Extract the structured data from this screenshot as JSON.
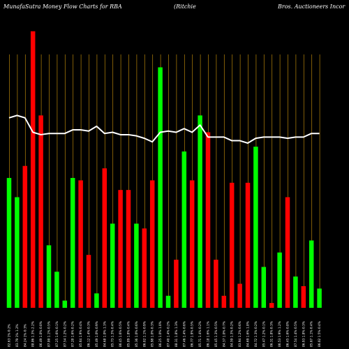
{
  "chart_data": {
    "type": "bar",
    "title_left": "MunafaSutra  Money Flow  Charts for RBA",
    "title_mid": "(Ritchie",
    "title_right": "Bros. Auctioneers Incor",
    "colors": {
      "background": "#000000",
      "up": "#00ff00",
      "down": "#ff0000",
      "line": "#ffffff",
      "grid": "#b8860b"
    },
    "grid": true,
    "categories": [
      "82.63 1% 0.2%",
      "83.79 1% 1.2%",
      "84.24 1% 0.3%",
      "88.86 1.3% 2.2%",
      "86.49 1.0% 0.0%",
      "87.00 1.1% 0.5%",
      "87.25 1.6% 0.1%",
      "87.54 1.2% 0.2%",
      "87.28 1.6% 0.2%",
      "85.64 1.9% 0.4%",
      "86.12 1.4% 0.3%",
      "85.49 1.0% 0.9%",
      "84.68 1.0% 1.3%",
      "85.73 1.3% 0.4%",
      "86.45 1.6% 0.5%",
      "85.89 1.8% 0.4%",
      "85.36 1.0% 0.6%",
      "86.02 1.1% 0.9%",
      "85.98 1.0% 0.3%",
      "86.25 1.0% 1.0%",
      "87.40 1.4% 0.2%",
      "88.31 1.8% 1.3%",
      "87.46 1.4% 0.6%",
      "86.77 1.9% 0.5%",
      "85.71 1.4% 0.2%",
      "86.18 1.6% 1.1%",
      "85.45 1.3% 0.5%",
      "84.37 1.0% 0.7%",
      "84.59 1.3% 0.2%",
      "83.94 1.2% 0.6%",
      "84.69 1.6% 1.8%",
      "84.72 1.3% 0.2%",
      "85.47 1.2% 0.1%",
      "86.31 1.8% 0.3%",
      "86.53 1.9% 1.2%",
      "86.45 1.6% 0.8%",
      "87.54 1.4% 0.5%",
      "86.93 1.8% 0.3%",
      "85.67 1.1% 0.4%",
      "86.02 1.5% 0.4%"
    ],
    "series": [
      {
        "values": [
          54,
          46,
          59,
          115,
          80,
          26,
          15,
          3,
          54,
          53,
          22,
          6,
          58,
          35,
          49,
          49,
          35,
          33,
          53,
          100,
          5,
          20,
          65,
          53,
          80,
          73,
          20,
          5,
          52,
          10,
          52,
          67,
          17,
          2,
          23,
          46,
          13,
          9,
          28,
          8
        ],
        "colors": [
          "up",
          "up",
          "down",
          "down",
          "down",
          "up",
          "up",
          "up",
          "up",
          "down",
          "down",
          "up",
          "down",
          "up",
          "down",
          "down",
          "up",
          "down",
          "down",
          "up",
          "up",
          "down",
          "up",
          "down",
          "up",
          "down",
          "down",
          "down",
          "down",
          "down",
          "down",
          "up",
          "up",
          "down",
          "up",
          "down",
          "up",
          "down",
          "up",
          "up"
        ]
      },
      {
        "type": "line",
        "values": [
          79,
          80,
          79,
          73,
          72,
          72.5,
          72.5,
          72.5,
          74,
          74,
          73.5,
          75.5,
          72.5,
          73,
          72,
          72,
          71.5,
          70.5,
          69,
          73,
          73.5,
          73,
          74.5,
          73,
          76,
          71,
          71,
          71,
          69.5,
          69.5,
          68.5,
          70.5,
          71,
          71,
          71,
          70.5,
          71,
          71,
          72.5,
          72.5
        ]
      }
    ],
    "ylim": [
      0,
      128
    ]
  }
}
